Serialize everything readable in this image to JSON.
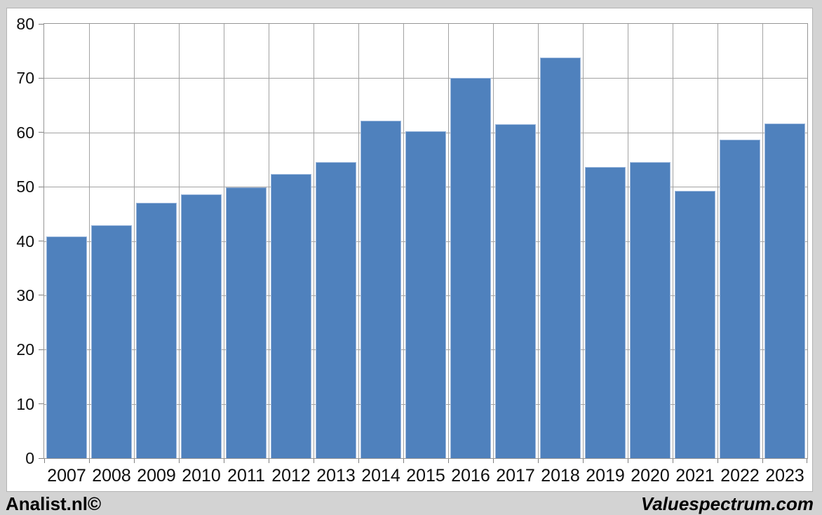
{
  "chart_data": {
    "type": "bar",
    "title": "",
    "xlabel": "",
    "ylabel": "",
    "categories": [
      "2007",
      "2008",
      "2009",
      "2010",
      "2011",
      "2012",
      "2013",
      "2014",
      "2015",
      "2016",
      "2017",
      "2018",
      "2019",
      "2020",
      "2021",
      "2022",
      "2023"
    ],
    "values": [
      40.8,
      42.9,
      47.0,
      48.6,
      49.9,
      52.3,
      54.5,
      62.2,
      60.2,
      70.0,
      61.5,
      73.8,
      53.7,
      54.6,
      49.2,
      58.7,
      61.7
    ],
    "ylim": [
      0,
      80
    ],
    "y_ticks": [
      0,
      10,
      20,
      30,
      40,
      50,
      60,
      70,
      80
    ],
    "grid": "horizontal and vertical gridlines, gray, behind bars",
    "legend": "none",
    "bar_color": "#4f81bd",
    "bar_border_color": "#9fbade",
    "gridline_color": "#a3a3a3",
    "plot_background": "#ffffff",
    "outer_background": "#d3d3d3"
  },
  "footer": {
    "left_text": "Analist.nl©",
    "right_text": "Valuespectrum.com"
  }
}
